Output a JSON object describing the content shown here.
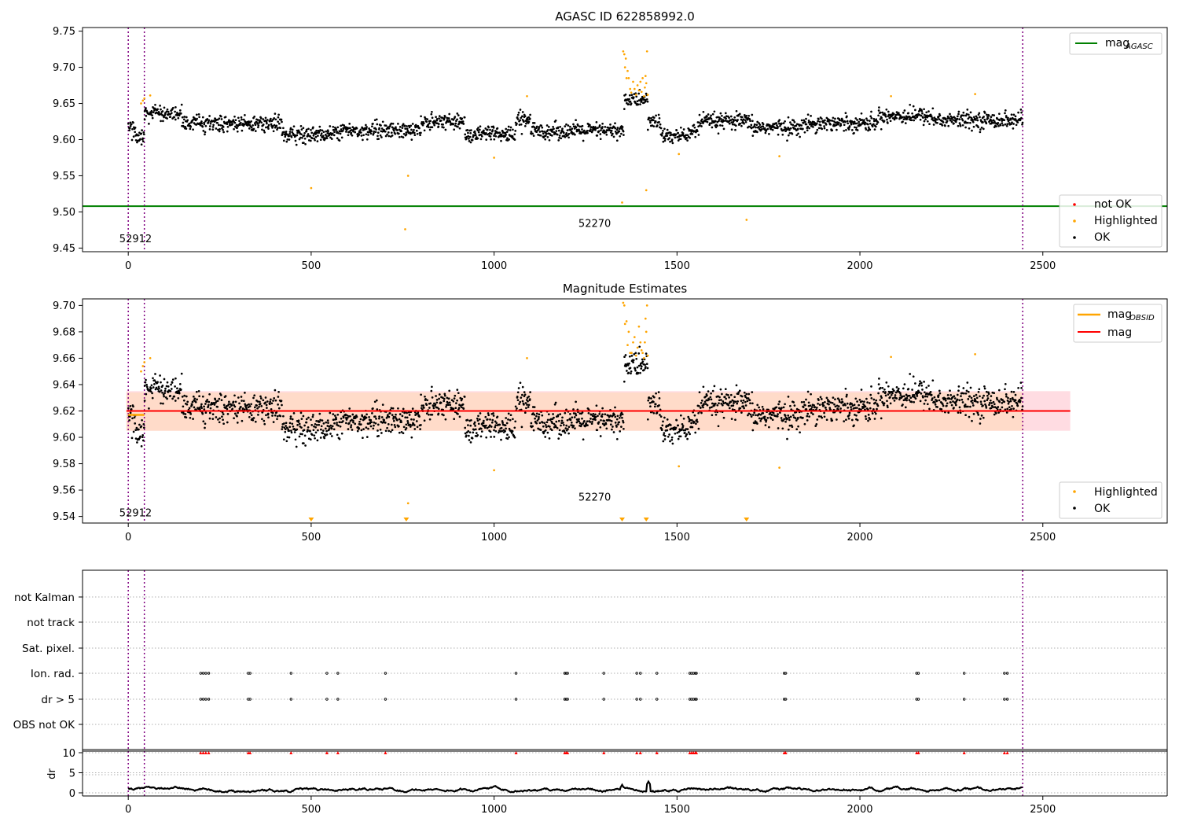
{
  "chart_data": [
    {
      "id": "agasc",
      "type": "scatter",
      "title": "AGASC ID 622858992.0",
      "xlim": [
        -125,
        2840
      ],
      "ylim": [
        9.445,
        9.755
      ],
      "xticks": [
        0,
        500,
        1000,
        1500,
        2000,
        2500
      ],
      "yticks": [
        9.45,
        9.5,
        9.55,
        9.6,
        9.65,
        9.7,
        9.75
      ],
      "ytick_labels": [
        "9.45",
        "9.50",
        "9.55",
        "9.60",
        "9.65",
        "9.70",
        "9.75"
      ],
      "vlines": [
        0,
        44,
        2445
      ],
      "hline": {
        "label": "mag_AGASC",
        "label_main": "mag",
        "label_sub": "AGASC",
        "y": 9.508,
        "color": "#008000"
      },
      "annotations": [
        {
          "text": "52912",
          "x": 20,
          "y": 9.458
        },
        {
          "text": "52270",
          "x": 1275,
          "y": 9.479
        }
      ],
      "legend_lines": [
        {
          "main": "mag",
          "sub": "AGASC",
          "color": "#008000"
        }
      ],
      "legend_points": [
        {
          "label": "not OK",
          "color": "#ff0000"
        },
        {
          "label": "Highlighted",
          "color": "#ffa500"
        },
        {
          "label": "OK",
          "color": "#000000"
        }
      ],
      "ok_series": {
        "name": "OK",
        "color": "#000000",
        "segments": [
          [
            0,
            20,
            9.615
          ],
          [
            20,
            44,
            9.605
          ],
          [
            44,
            150,
            9.635
          ],
          [
            150,
            420,
            9.622
          ],
          [
            420,
            560,
            9.607
          ],
          [
            560,
            800,
            9.613
          ],
          [
            800,
            920,
            9.625
          ],
          [
            920,
            1060,
            9.607
          ],
          [
            1060,
            1100,
            9.628
          ],
          [
            1100,
            1355,
            9.612
          ],
          [
            1355,
            1420,
            9.655
          ],
          [
            1420,
            1455,
            9.625
          ],
          [
            1455,
            1530,
            9.605
          ],
          [
            1530,
            1560,
            9.612
          ],
          [
            1560,
            1700,
            9.625
          ],
          [
            1700,
            1850,
            9.617
          ],
          [
            1850,
            2050,
            9.623
          ],
          [
            2050,
            2200,
            9.633
          ],
          [
            2200,
            2445,
            9.627
          ]
        ],
        "noise": 0.01
      },
      "highlighted": [
        [
          35,
          9.65
        ],
        [
          40,
          9.654
        ],
        [
          44,
          9.657
        ],
        [
          60,
          9.661
        ],
        [
          500,
          9.533
        ],
        [
          757,
          9.476
        ],
        [
          765,
          9.55
        ],
        [
          1000,
          9.575
        ],
        [
          1090,
          9.66
        ],
        [
          1350,
          9.513
        ],
        [
          1353,
          9.722
        ],
        [
          1356,
          9.718
        ],
        [
          1358,
          9.7
        ],
        [
          1360,
          9.712
        ],
        [
          1362,
          9.685
        ],
        [
          1365,
          9.695
        ],
        [
          1368,
          9.685
        ],
        [
          1372,
          9.67
        ],
        [
          1375,
          9.665
        ],
        [
          1380,
          9.68
        ],
        [
          1384,
          9.67
        ],
        [
          1388,
          9.662
        ],
        [
          1392,
          9.675
        ],
        [
          1396,
          9.668
        ],
        [
          1400,
          9.68
        ],
        [
          1403,
          9.666
        ],
        [
          1406,
          9.685
        ],
        [
          1410,
          9.66
        ],
        [
          1412,
          9.672
        ],
        [
          1414,
          9.688
        ],
        [
          1416,
          9.678
        ],
        [
          1418,
          9.722
        ],
        [
          1420,
          9.662
        ],
        [
          1416,
          9.53
        ],
        [
          1505,
          9.58
        ],
        [
          1690,
          9.489
        ],
        [
          1780,
          9.577
        ],
        [
          2085,
          9.66
        ],
        [
          2315,
          9.663
        ]
      ]
    },
    {
      "id": "mag-est",
      "type": "scatter",
      "title": "Magnitude Estimates",
      "xlim": [
        -125,
        2840
      ],
      "ylim": [
        9.535,
        9.705
      ],
      "xticks": [
        0,
        500,
        1000,
        1500,
        2000,
        2500
      ],
      "yticks": [
        9.54,
        9.56,
        9.58,
        9.6,
        9.62,
        9.64,
        9.66,
        9.68,
        9.7
      ],
      "ytick_labels": [
        "9.54",
        "9.56",
        "9.58",
        "9.60",
        "9.62",
        "9.64",
        "9.66",
        "9.68",
        "9.70"
      ],
      "vlines": [
        0,
        44,
        2445
      ],
      "mag": {
        "label": "mag",
        "y": 9.62,
        "color": "#ff0000",
        "band": [
          9.605,
          9.635
        ],
        "band_color": "#ffc0cb",
        "x_range": [
          0,
          2575
        ]
      },
      "mag_obsid": {
        "main": "mag",
        "sub": "OBSID",
        "color": "#ffa500",
        "y": 9.617,
        "band": [
          9.605,
          9.634
        ],
        "band_color": "#ffdab9"
      },
      "annotations": [
        {
          "text": "52912",
          "x": 20,
          "y": 9.54
        },
        {
          "text": "52270",
          "x": 1275,
          "y": 9.552
        }
      ],
      "legend_lines": [
        {
          "main": "mag",
          "sub": "OBSID",
          "color": "#ffa500"
        },
        {
          "main": "mag",
          "sub": "",
          "color": "#ff0000"
        }
      ],
      "legend_points": [
        {
          "label": "Highlighted",
          "color": "#ffa500"
        },
        {
          "label": "OK",
          "color": "#000000"
        }
      ],
      "below_markers": [
        500,
        760,
        1350,
        1416,
        1690
      ],
      "ok_series": {
        "name": "OK",
        "color": "#000000",
        "segments": [
          [
            0,
            20,
            9.615
          ],
          [
            20,
            44,
            9.605
          ],
          [
            44,
            150,
            9.635
          ],
          [
            150,
            420,
            9.622
          ],
          [
            420,
            560,
            9.607
          ],
          [
            560,
            800,
            9.613
          ],
          [
            800,
            920,
            9.625
          ],
          [
            920,
            1060,
            9.607
          ],
          [
            1060,
            1100,
            9.628
          ],
          [
            1100,
            1355,
            9.612
          ],
          [
            1355,
            1420,
            9.655
          ],
          [
            1420,
            1455,
            9.625
          ],
          [
            1455,
            1530,
            9.605
          ],
          [
            1530,
            1560,
            9.612
          ],
          [
            1560,
            1700,
            9.625
          ],
          [
            1700,
            1850,
            9.617
          ],
          [
            1850,
            2050,
            9.623
          ],
          [
            2050,
            2200,
            9.633
          ],
          [
            2200,
            2445,
            9.627
          ]
        ],
        "noise": 0.01
      },
      "highlighted": [
        [
          35,
          9.65
        ],
        [
          40,
          9.654
        ],
        [
          44,
          9.657
        ],
        [
          60,
          9.66
        ],
        [
          765,
          9.55
        ],
        [
          1000,
          9.575
        ],
        [
          1090,
          9.66
        ],
        [
          1353,
          9.702
        ],
        [
          1356,
          9.7
        ],
        [
          1358,
          9.686
        ],
        [
          1362,
          9.688
        ],
        [
          1365,
          9.67
        ],
        [
          1368,
          9.68
        ],
        [
          1372,
          9.664
        ],
        [
          1376,
          9.664
        ],
        [
          1380,
          9.672
        ],
        [
          1384,
          9.676
        ],
        [
          1388,
          9.662
        ],
        [
          1392,
          9.668
        ],
        [
          1396,
          9.684
        ],
        [
          1400,
          9.672
        ],
        [
          1403,
          9.666
        ],
        [
          1406,
          9.664
        ],
        [
          1410,
          9.66
        ],
        [
          1412,
          9.672
        ],
        [
          1414,
          9.69
        ],
        [
          1416,
          9.68
        ],
        [
          1418,
          9.7
        ],
        [
          1420,
          9.662
        ],
        [
          1505,
          9.578
        ],
        [
          1780,
          9.577
        ],
        [
          2085,
          9.661
        ],
        [
          2315,
          9.663
        ]
      ]
    },
    {
      "id": "flags",
      "type": "scatter",
      "title": "",
      "xlim": [
        -125,
        2840
      ],
      "categories": [
        "not Kalman",
        "not track",
        "Sat. pixel.",
        "Ion. rad.",
        "dr > 5",
        "OBS not OK"
      ],
      "vlines": [
        0,
        44,
        2445
      ],
      "flag_positions": [
        198,
        205,
        212,
        220,
        328,
        333,
        445,
        543,
        573,
        703,
        1060,
        1193,
        1197,
        1201,
        1300,
        1390,
        1400,
        1445,
        1535,
        1540,
        1545,
        1550,
        1553,
        1793,
        1797,
        2155,
        2160,
        2285,
        2395,
        2403
      ],
      "flag_rows": [
        "Ion. rad.",
        "dr > 5"
      ]
    },
    {
      "id": "dr",
      "type": "line",
      "ylabel": "dr",
      "xlim": [
        -125,
        2840
      ],
      "ylim": [
        -0.5,
        10.5
      ],
      "yticks": [
        0,
        5,
        10
      ],
      "ytick_labels": [
        "0",
        "5",
        "10"
      ],
      "xticks": [
        0,
        500,
        1000,
        1500,
        2000,
        2500
      ],
      "vlines": [
        0,
        44,
        2445
      ],
      "series": {
        "name": "dr",
        "color": "#000000",
        "range": [
          0,
          2445
        ],
        "base": 0.8
      },
      "spikes": [
        [
          1350,
          2.0
        ],
        [
          1422,
          2.8
        ]
      ],
      "red_markers_y": 10
    }
  ]
}
